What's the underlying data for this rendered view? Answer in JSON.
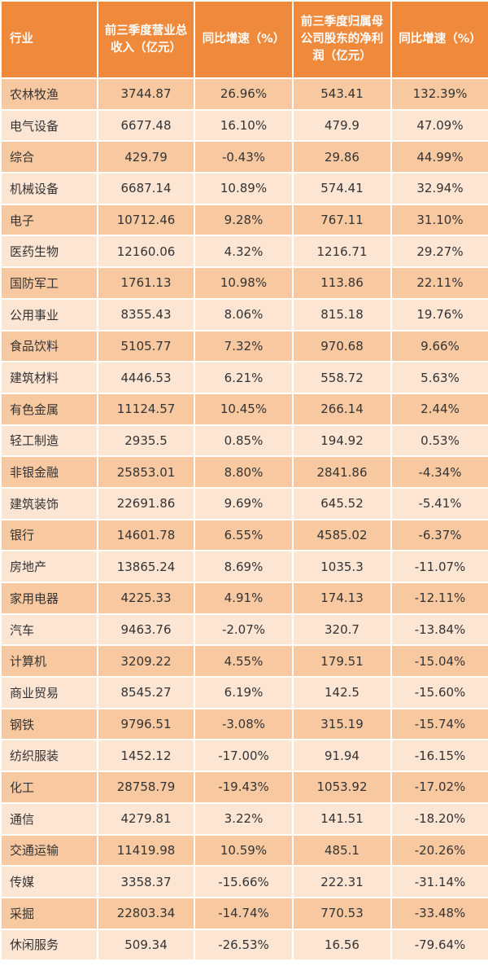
{
  "headers": [
    "行业",
    "前三季度营业总收入（亿元）",
    "同比增速（%）",
    "前三季度归属母公司股东的净利润（亿元）",
    "同比增速（%）"
  ],
  "rows": [
    [
      "农林牧渔",
      "3744.87",
      "26.96%",
      "543.41",
      "132.39%"
    ],
    [
      "电气设备",
      "6677.48",
      "16.10%",
      "479.9",
      "47.09%"
    ],
    [
      "综合",
      "429.79",
      "-0.43%",
      "29.86",
      "44.99%"
    ],
    [
      "机械设备",
      "6687.14",
      "10.89%",
      "574.41",
      "32.94%"
    ],
    [
      "电子",
      "10712.46",
      "9.28%",
      "767.11",
      "31.10%"
    ],
    [
      "医药生物",
      "12160.06",
      "4.32%",
      "1216.71",
      "29.27%"
    ],
    [
      "国防军工",
      "1761.13",
      "10.98%",
      "113.86",
      "22.11%"
    ],
    [
      "公用事业",
      "8355.43",
      "8.06%",
      "815.18",
      "19.76%"
    ],
    [
      "食品饮料",
      "5105.77",
      "7.32%",
      "970.68",
      "9.66%"
    ],
    [
      "建筑材料",
      "4446.53",
      "6.21%",
      "558.72",
      "5.63%"
    ],
    [
      "有色金属",
      "11124.57",
      "10.45%",
      "266.14",
      "2.44%"
    ],
    [
      "轻工制造",
      "2935.5",
      "0.85%",
      "194.92",
      "0.53%"
    ],
    [
      "非银金融",
      "25853.01",
      "8.80%",
      "2841.86",
      "-4.34%"
    ],
    [
      "建筑装饰",
      "22691.86",
      "9.69%",
      "645.52",
      "-5.41%"
    ],
    [
      "银行",
      "14601.78",
      "6.55%",
      "4585.02",
      "-6.37%"
    ],
    [
      "房地产",
      "13865.24",
      "8.69%",
      "1035.3",
      "-11.07%"
    ],
    [
      "家用电器",
      "4225.33",
      "4.91%",
      "174.13",
      "-12.11%"
    ],
    [
      "汽车",
      "9463.76",
      "-2.07%",
      "320.7",
      "-13.84%"
    ],
    [
      "计算机",
      "3209.22",
      "4.55%",
      "179.51",
      "-15.04%"
    ],
    [
      "商业贸易",
      "8545.27",
      "6.19%",
      "142.5",
      "-15.60%"
    ],
    [
      "钢铁",
      "9796.51",
      "-3.08%",
      "315.19",
      "-15.74%"
    ],
    [
      "纺织服装",
      "1452.12",
      "-17.00%",
      "91.94",
      "-16.15%"
    ],
    [
      "化工",
      "28758.79",
      "-19.43%",
      "1053.92",
      "-17.02%"
    ],
    [
      "通信",
      "4279.81",
      "3.22%",
      "141.51",
      "-18.20%"
    ],
    [
      "交通运输",
      "11419.98",
      "10.59%",
      "485.1",
      "-20.26%"
    ],
    [
      "传媒",
      "3358.37",
      "-15.66%",
      "222.31",
      "-31.14%"
    ],
    [
      "采掘",
      "22803.34",
      "-14.74%",
      "770.53",
      "-33.48%"
    ],
    [
      "休闲服务",
      "509.34",
      "-26.53%",
      "16.56",
      "-79.64%"
    ]
  ],
  "colors": {
    "header_bg": "#ef8a3d",
    "row_odd": "#f8c9a1",
    "row_even": "#fde5d4"
  }
}
